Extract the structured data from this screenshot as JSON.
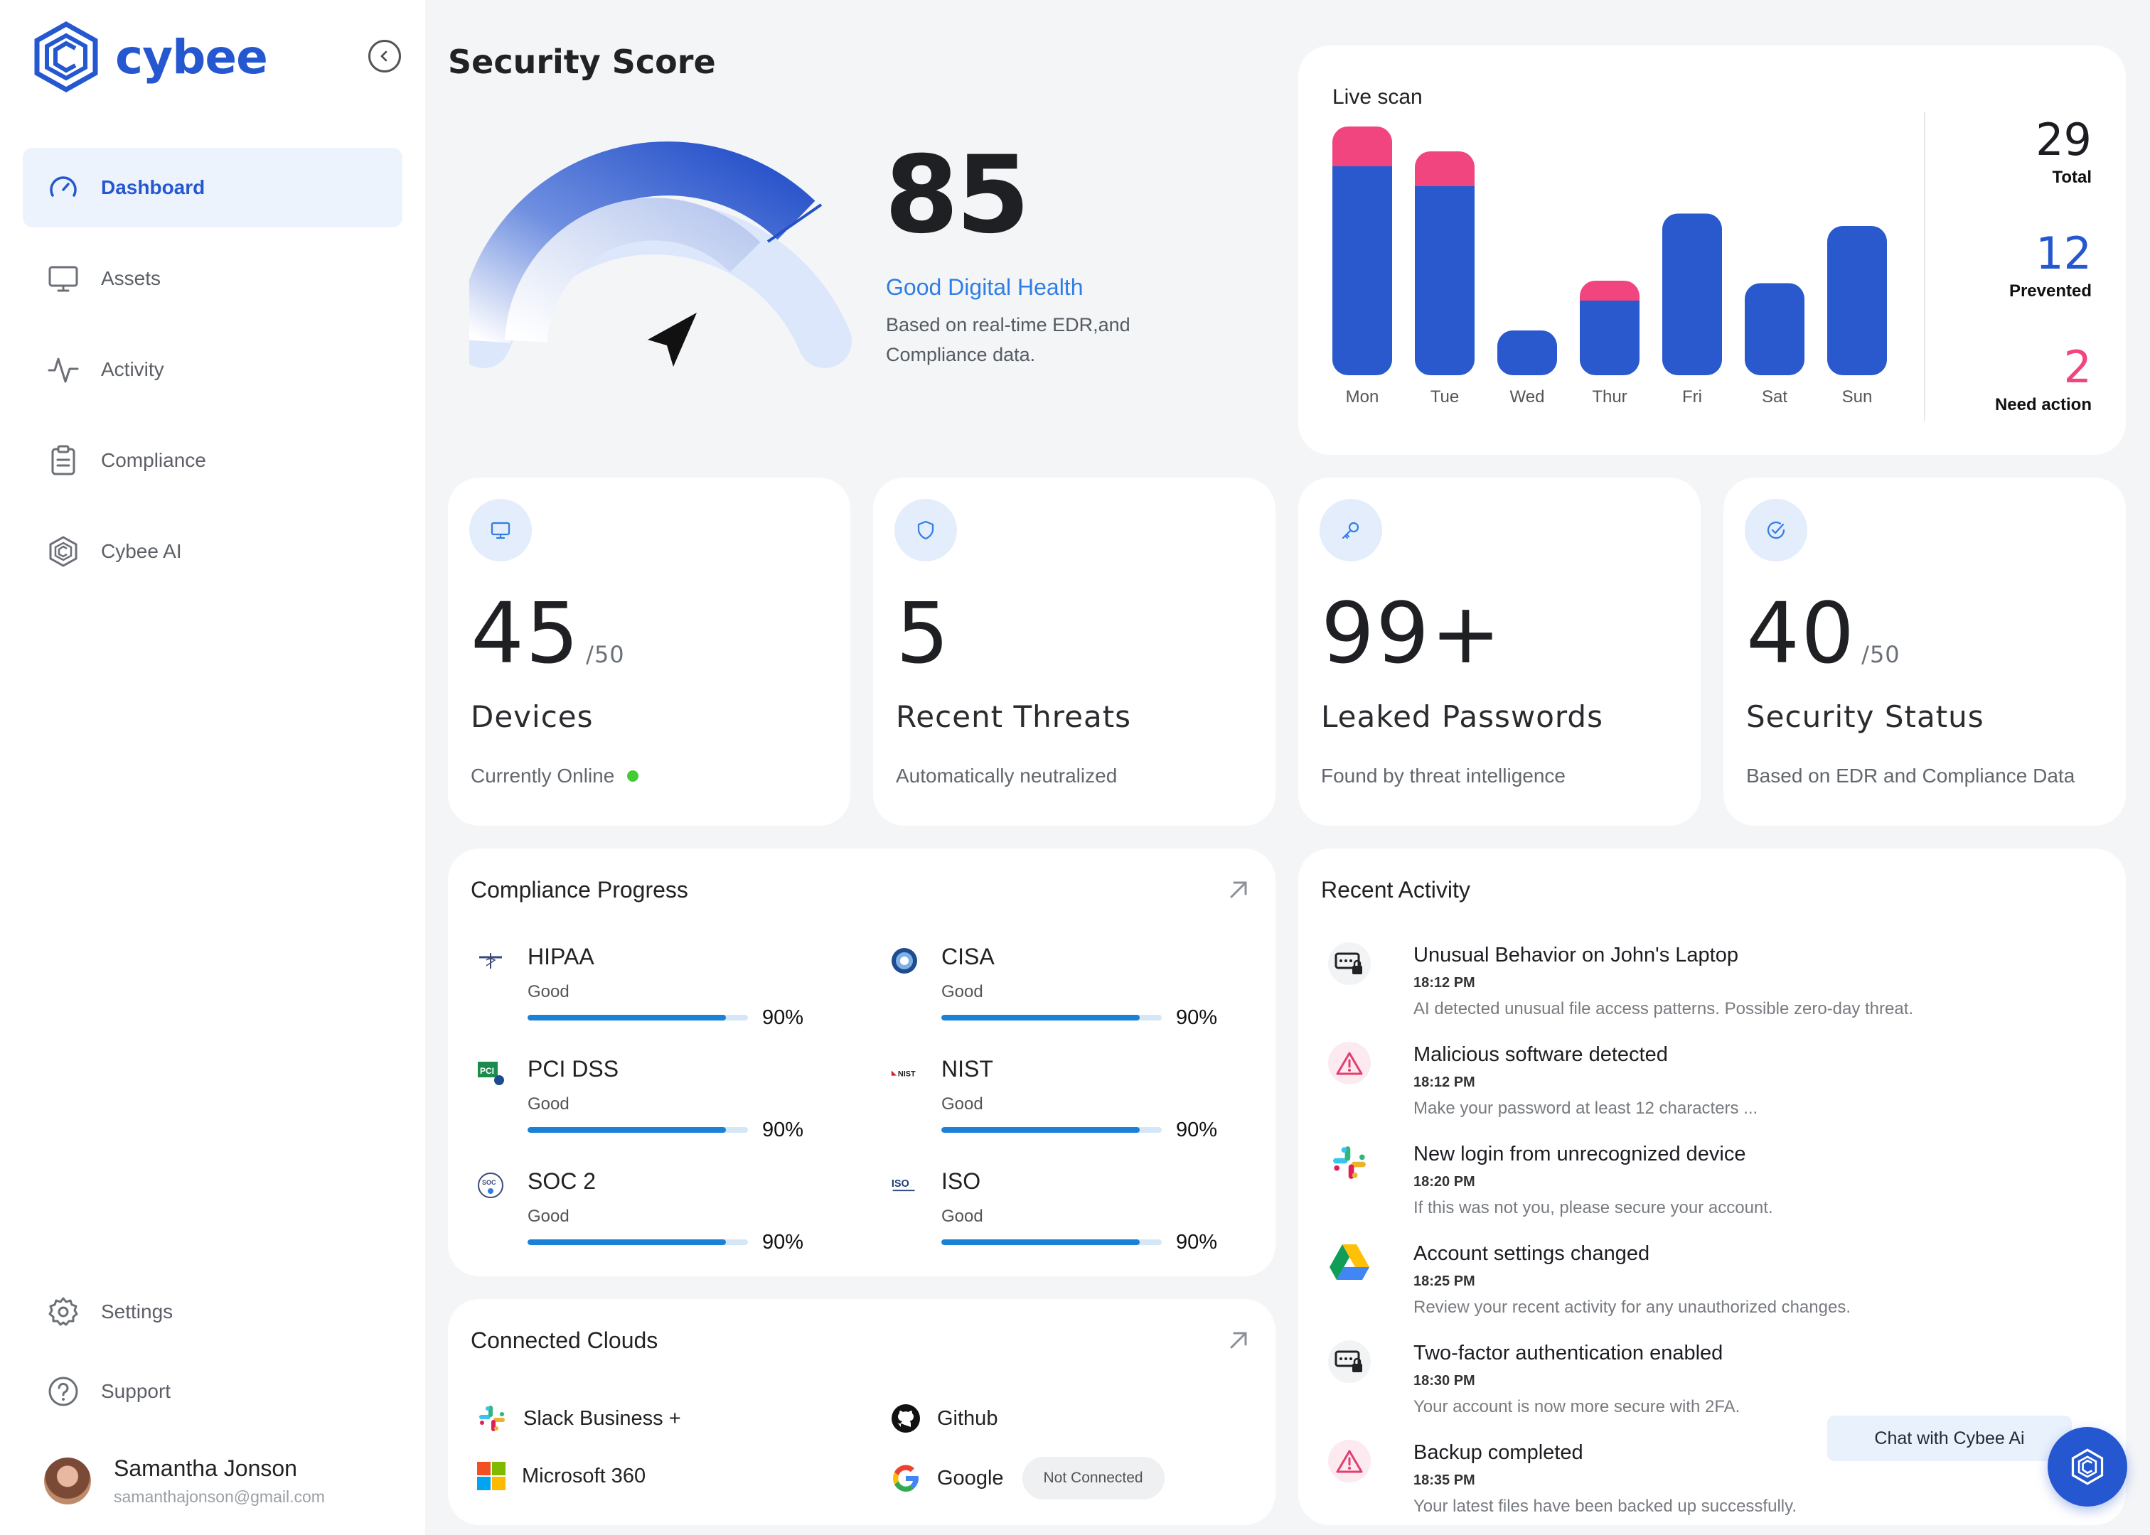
{
  "brand": {
    "name": "cybee"
  },
  "nav": {
    "items": [
      {
        "label": "Dashboard",
        "icon": "dashboard-gauge-icon",
        "active": true
      },
      {
        "label": "Assets",
        "icon": "monitor-icon"
      },
      {
        "label": "Activity",
        "icon": "activity-pulse-icon"
      },
      {
        "label": "Compliance",
        "icon": "clipboard-icon"
      },
      {
        "label": "Cybee AI",
        "icon": "cybee-hexagon-icon"
      }
    ],
    "bottom": [
      {
        "label": "Settings",
        "icon": "gear-icon"
      },
      {
        "label": "Support",
        "icon": "help-circle-icon"
      }
    ]
  },
  "user": {
    "name": "Samantha Jonson",
    "email": "samanthajonson@gmail.com"
  },
  "score": {
    "title": "Security Score",
    "value": "85",
    "gauge_value": 85,
    "label": "Good Digital Health",
    "description": "Based on real-time EDR,and Compliance data."
  },
  "live_scan": {
    "title": "Live scan",
    "stats": [
      {
        "value": "29",
        "label": "Total",
        "color": "#111111"
      },
      {
        "value": "12",
        "label": "Prevented",
        "color": "#2457d0"
      },
      {
        "value": "2",
        "label": "Need action",
        "color": "#f0457f"
      }
    ]
  },
  "chart_data": {
    "type": "bar",
    "title": "Live scan",
    "categories": [
      "Mon",
      "Tue",
      "Wed",
      "Thur",
      "Fri",
      "Sat",
      "Sun"
    ],
    "series": [
      {
        "values": [
          8.4,
          7.6,
          1.8,
          3.0,
          6.5,
          3.7,
          6.0
        ],
        "color": "#2a58cd"
      },
      {
        "values": [
          1.6,
          1.4,
          0,
          0.8,
          0,
          0,
          0
        ],
        "color": "#f0457f"
      }
    ],
    "stacked": true,
    "ylim": [
      0,
      10
    ],
    "grid": false
  },
  "stat_cards": [
    {
      "icon": "monitor-icon",
      "value": "45",
      "suffix": "/50",
      "title": "Devices",
      "desc": "Currently Online",
      "online": true
    },
    {
      "icon": "shield-icon",
      "value": "5",
      "suffix": "",
      "title": "Recent Threats",
      "desc": "Automatically neutralized"
    },
    {
      "icon": "key-icon",
      "value": "99+",
      "suffix": "",
      "title": "Leaked Passwords",
      "desc": "Found by threat intelligence"
    },
    {
      "icon": "check-circle-icon",
      "value": "40",
      "suffix": "/50",
      "title": "Security Status",
      "desc": "Based on EDR and Compliance Data"
    }
  ],
  "compliance": {
    "title": "Compliance Progress",
    "items": [
      {
        "name": "HIPAA",
        "status": "Good",
        "percent": "90%",
        "progress": 0.9,
        "logo": "hipaa-logo-icon"
      },
      {
        "name": "CISA",
        "status": "Good",
        "percent": "90%",
        "progress": 0.9,
        "logo": "cisa-logo-icon"
      },
      {
        "name": "PCI DSS",
        "status": "Good",
        "percent": "90%",
        "progress": 0.9,
        "logo": "pci-logo-icon"
      },
      {
        "name": "NIST",
        "status": "Good",
        "percent": "90%",
        "progress": 0.9,
        "logo": "nist-logo-icon"
      },
      {
        "name": "SOC 2",
        "status": "Good",
        "percent": "90%",
        "progress": 0.9,
        "logo": "soc2-logo-icon"
      },
      {
        "name": "ISO",
        "status": "Good",
        "percent": "90%",
        "progress": 0.9,
        "logo": "iso-logo-icon"
      }
    ]
  },
  "clouds": {
    "title": "Connected Clouds",
    "items": [
      {
        "name": "Slack Business +",
        "icon": "slack-icon"
      },
      {
        "name": "Github",
        "icon": "github-icon"
      },
      {
        "name": "Microsoft 360",
        "icon": "microsoft-icon"
      },
      {
        "name": "Google",
        "icon": "google-icon",
        "badge": "Not Connected"
      }
    ]
  },
  "activity": {
    "title": "Recent Activity",
    "items": [
      {
        "title": "Unusual Behavior on John's Laptop",
        "time": "18:12 PM",
        "desc": "AI detected unusual file access patterns. Possible zero-day threat.",
        "icon": "laptop-lock-icon"
      },
      {
        "title": "Malicious software detected",
        "time": "18:12 PM",
        "desc": "Make your password at least 12 characters ...",
        "icon": "warning-icon"
      },
      {
        "title": "New login from unrecognized device",
        "time": "18:20 PM",
        "desc": "If this was not you, please secure your account.",
        "icon": "slack-icon"
      },
      {
        "title": "Account settings changed",
        "time": "18:25 PM",
        "desc": "Review your recent activity for any unauthorized changes.",
        "icon": "google-drive-icon"
      },
      {
        "title": "Two-factor authentication enabled",
        "time": "18:30 PM",
        "desc": "Your account is now more secure with 2FA.",
        "icon": "laptop-lock-icon"
      },
      {
        "title": "Backup completed",
        "time": "18:35 PM",
        "desc": "Your latest files have been backed up successfully.",
        "icon": "warning-icon"
      }
    ]
  },
  "chat": {
    "label": "Chat with Cybee Ai"
  }
}
